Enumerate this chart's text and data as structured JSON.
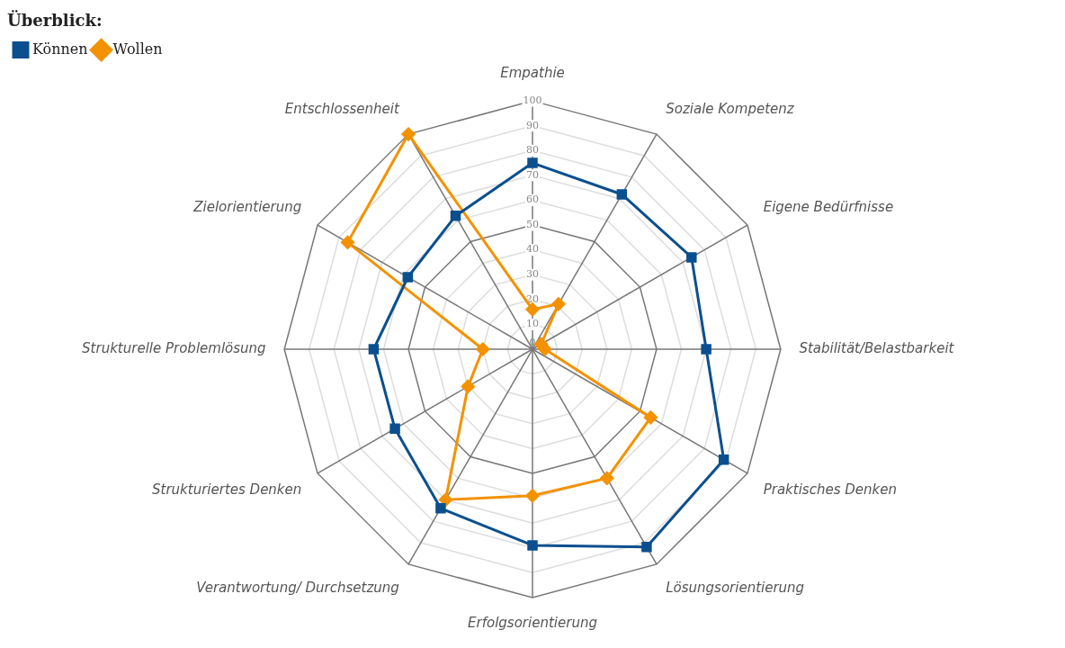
{
  "chart_data": {
    "type": "radar",
    "title": "Überblick:",
    "legend": "top left",
    "grid": true,
    "categories": [
      "Empathie",
      "Soziale Kompetenz",
      "Eigene Bedürfnisse",
      "Stabilität/Belastbarkeit",
      "Praktisches Denken",
      "Lösungsorientierung",
      "Erfolgsorientierung",
      "Verantwortung/ Durchsetzung",
      "Strukturiertes Denken",
      "Strukturelle Problemlösung",
      "Zielorientierung",
      "Entschlossenheit"
    ],
    "ylim": [
      0,
      100
    ],
    "yticks": [
      0,
      10,
      20,
      30,
      40,
      50,
      60,
      70,
      80,
      90,
      100
    ],
    "series": [
      {
        "name": "Können",
        "color": "#0b4f8f",
        "marker": "square",
        "values": [
          75,
          72,
          74,
          70,
          89,
          92,
          79,
          74,
          64,
          64,
          58,
          62
        ]
      },
      {
        "name": "Wollen",
        "color": "#f39200",
        "marker": "diamond",
        "values": [
          16,
          21,
          4,
          5,
          55,
          60,
          59,
          70,
          30,
          20,
          86,
          100
        ]
      }
    ]
  }
}
